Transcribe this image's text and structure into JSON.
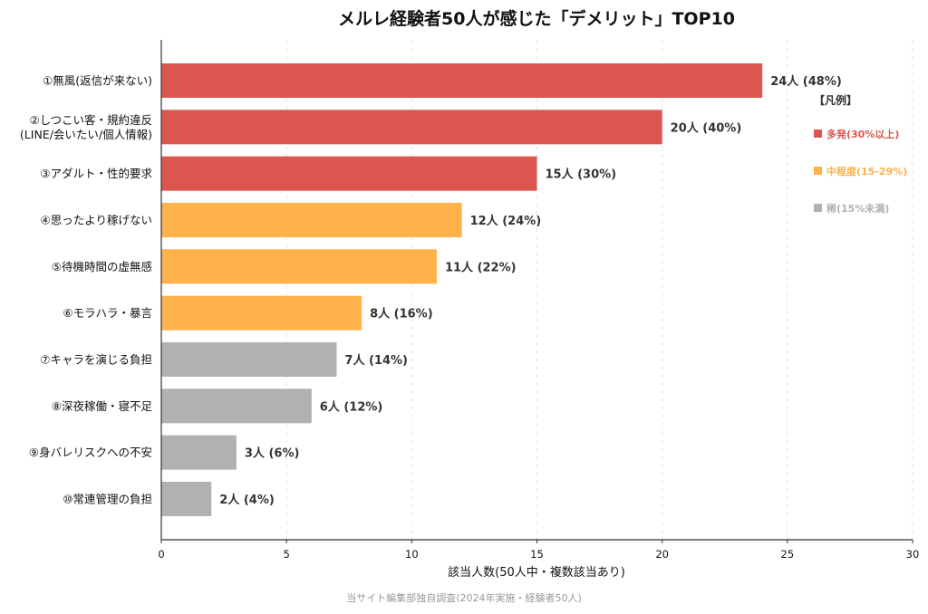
{
  "chart_data": {
    "type": "bar",
    "orientation": "horizontal",
    "title": "メルレ経験者50人が感じた「デメリット」TOP10",
    "xlabel": "該当人数(50人中・複数該当あり)",
    "ylabel": "",
    "xlim": [
      0,
      30
    ],
    "xticks": [
      "0",
      "5",
      "10",
      "15",
      "20",
      "25",
      "30"
    ],
    "grid": "vertical dashed",
    "categories": [
      "①無風(返信が来ない)",
      "②しつこい客・規約違反\n(LINE/会いたい/個人情報)",
      "③アダルト・性的要求",
      "④思ったより稼げない",
      "⑤待機時間の虚無感",
      "⑥モラハラ・暴言",
      "⑦キャラを演じる負担",
      "⑧深夜稼働・寝不足",
      "⑨身バレリスクへの不安",
      "⑩常連管理の負担"
    ],
    "values": [
      24,
      20,
      15,
      12,
      11,
      8,
      7,
      6,
      3,
      2
    ],
    "data_labels": [
      "24人 (48%)",
      "20人 (40%)",
      "15人 (30%)",
      "12人 (24%)",
      "11人 (22%)",
      "8人 (16%)",
      "7人 (14%)",
      "6人 (12%)",
      "3人 (6%)",
      "2人 (4%)"
    ],
    "bar_colors": [
      "#dc5650",
      "#dc5650",
      "#dc5650",
      "#ffb24a",
      "#ffb24a",
      "#ffb24a",
      "#b1b1b1",
      "#b1b1b1",
      "#b1b1b1",
      "#b1b1b1"
    ],
    "legend": {
      "placement": "top-right",
      "title": "【凡例】",
      "entries": [
        {
          "label": "多発(30%以上)",
          "color": "#dc5650"
        },
        {
          "label": "中程度(15-29%)",
          "color": "#ffb24a"
        },
        {
          "label": "稀(15%未満)",
          "color": "#b1b1b1"
        }
      ]
    },
    "source": "当サイト編集部独自調査(2024年実施・経験者50人)"
  }
}
